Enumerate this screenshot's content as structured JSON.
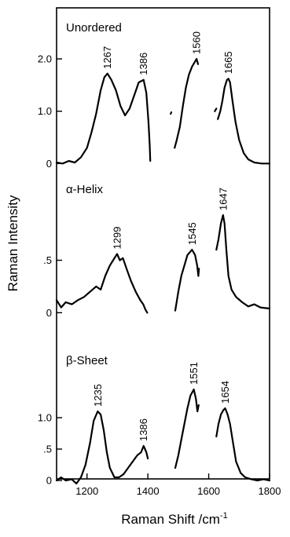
{
  "chart_data": {
    "type": "line",
    "xlabel": "Raman Shift /cm",
    "xlabel_sup": "-1",
    "ylabel": "Raman Intensity",
    "xlim": [
      1100,
      1800
    ],
    "xticks": [
      "1200",
      "1400",
      "1600",
      "1800"
    ],
    "xtick_values": [
      1200,
      1400,
      1600,
      1800
    ],
    "panels": [
      {
        "name": "Unordered",
        "ylim": [
          -0.1,
          2.3
        ],
        "yticks": [
          {
            "value": 0,
            "label": "0"
          },
          {
            "value": 1.0,
            "label": "1.0"
          },
          {
            "value": 2.0,
            "label": "2.0"
          }
        ],
        "segments": [
          [
            [
              1100,
              0.02
            ],
            [
              1120,
              0.0
            ],
            [
              1140,
              0.05
            ],
            [
              1160,
              0.02
            ],
            [
              1180,
              0.12
            ],
            [
              1200,
              0.3
            ],
            [
              1215,
              0.6
            ],
            [
              1230,
              0.95
            ],
            [
              1245,
              1.4
            ],
            [
              1257,
              1.65
            ],
            [
              1267,
              1.72
            ],
            [
              1280,
              1.6
            ],
            [
              1295,
              1.4
            ],
            [
              1310,
              1.1
            ],
            [
              1325,
              0.92
            ],
            [
              1340,
              1.05
            ],
            [
              1355,
              1.3
            ],
            [
              1370,
              1.55
            ],
            [
              1386,
              1.6
            ],
            [
              1395,
              1.35
            ],
            [
              1402,
              0.8
            ],
            [
              1406,
              0.35
            ],
            [
              1408,
              0.05
            ]
          ],
          [
            [
              1475,
              0.95
            ],
            [
              1477,
              0.98
            ]
          ],
          [
            [
              1488,
              0.3
            ],
            [
              1495,
              0.45
            ],
            [
              1505,
              0.7
            ],
            [
              1515,
              1.1
            ],
            [
              1525,
              1.45
            ],
            [
              1535,
              1.7
            ],
            [
              1545,
              1.85
            ],
            [
              1555,
              1.95
            ],
            [
              1560,
              2.0
            ],
            [
              1565,
              1.9
            ]
          ],
          [
            [
              1620,
              1.0
            ],
            [
              1625,
              1.05
            ]
          ],
          [
            [
              1630,
              0.85
            ],
            [
              1638,
              1.0
            ],
            [
              1645,
              1.2
            ],
            [
              1652,
              1.45
            ],
            [
              1660,
              1.6
            ],
            [
              1665,
              1.62
            ],
            [
              1670,
              1.55
            ],
            [
              1678,
              1.2
            ],
            [
              1688,
              0.8
            ],
            [
              1700,
              0.45
            ],
            [
              1715,
              0.2
            ],
            [
              1730,
              0.08
            ],
            [
              1750,
              0.02
            ],
            [
              1775,
              0.0
            ],
            [
              1800,
              0.0
            ]
          ]
        ],
        "peaks": [
          {
            "x": 1267,
            "label": "1267"
          },
          {
            "x": 1386,
            "label": "1386"
          },
          {
            "x": 1560,
            "label": "1560"
          },
          {
            "x": 1665,
            "label": "1665"
          }
        ]
      },
      {
        "name": "α-Helix",
        "ylim": [
          -0.05,
          1.05
        ],
        "yticks": [
          {
            "value": 0,
            "label": "0"
          },
          {
            "value": 0.5,
            "label": ".5"
          }
        ],
        "segments": [
          [
            [
              1100,
              0.12
            ],
            [
              1115,
              0.05
            ],
            [
              1130,
              0.1
            ],
            [
              1150,
              0.08
            ],
            [
              1170,
              0.12
            ],
            [
              1190,
              0.15
            ],
            [
              1210,
              0.2
            ],
            [
              1230,
              0.25
            ],
            [
              1245,
              0.22
            ],
            [
              1260,
              0.35
            ],
            [
              1275,
              0.45
            ],
            [
              1290,
              0.52
            ],
            [
              1299,
              0.56
            ],
            [
              1308,
              0.5
            ],
            [
              1318,
              0.52
            ],
            [
              1330,
              0.42
            ],
            [
              1345,
              0.3
            ],
            [
              1360,
              0.2
            ],
            [
              1375,
              0.12
            ],
            [
              1385,
              0.08
            ],
            [
              1392,
              0.03
            ],
            [
              1398,
              0.0
            ]
          ],
          [
            [
              1490,
              0.02
            ],
            [
              1500,
              0.2
            ],
            [
              1510,
              0.35
            ],
            [
              1520,
              0.45
            ],
            [
              1530,
              0.55
            ],
            [
              1545,
              0.6
            ],
            [
              1555,
              0.55
            ],
            [
              1562,
              0.45
            ],
            [
              1566,
              0.35
            ],
            [
              1568,
              0.42
            ]
          ],
          [
            [
              1625,
              0.6
            ],
            [
              1632,
              0.7
            ],
            [
              1640,
              0.85
            ],
            [
              1647,
              0.93
            ],
            [
              1652,
              0.85
            ],
            [
              1658,
              0.6
            ],
            [
              1665,
              0.35
            ],
            [
              1675,
              0.22
            ],
            [
              1690,
              0.15
            ],
            [
              1710,
              0.1
            ],
            [
              1730,
              0.06
            ],
            [
              1750,
              0.08
            ],
            [
              1770,
              0.05
            ],
            [
              1800,
              0.04
            ]
          ]
        ],
        "peaks": [
          {
            "x": 1299,
            "label": "1299"
          },
          {
            "x": 1545,
            "label": "1545"
          },
          {
            "x": 1647,
            "label": "1647"
          }
        ]
      },
      {
        "name": "β-Sheet",
        "ylim": [
          -0.1,
          1.7
        ],
        "yticks": [
          {
            "value": 0,
            "label": "0"
          },
          {
            "value": 0.5,
            "label": ".5"
          },
          {
            "value": 1.0,
            "label": "1.0"
          }
        ],
        "segments": [
          [
            [
              1100,
              0.0
            ],
            [
              1115,
              0.05
            ],
            [
              1130,
              0.0
            ],
            [
              1150,
              0.02
            ],
            [
              1165,
              -0.05
            ],
            [
              1180,
              0.05
            ],
            [
              1195,
              0.25
            ],
            [
              1210,
              0.6
            ],
            [
              1222,
              0.95
            ],
            [
              1235,
              1.1
            ],
            [
              1245,
              1.05
            ],
            [
              1255,
              0.8
            ],
            [
              1265,
              0.45
            ],
            [
              1275,
              0.2
            ],
            [
              1290,
              0.05
            ],
            [
              1305,
              0.05
            ],
            [
              1320,
              0.1
            ],
            [
              1335,
              0.2
            ],
            [
              1350,
              0.3
            ],
            [
              1365,
              0.4
            ],
            [
              1378,
              0.45
            ],
            [
              1386,
              0.55
            ],
            [
              1395,
              0.45
            ],
            [
              1400,
              0.35
            ]
          ],
          [
            [
              1490,
              0.2
            ],
            [
              1500,
              0.4
            ],
            [
              1510,
              0.65
            ],
            [
              1520,
              0.9
            ],
            [
              1530,
              1.15
            ],
            [
              1540,
              1.35
            ],
            [
              1551,
              1.45
            ],
            [
              1558,
              1.3
            ],
            [
              1563,
              1.1
            ],
            [
              1567,
              1.2
            ]
          ],
          [
            [
              1625,
              0.7
            ],
            [
              1632,
              0.9
            ],
            [
              1640,
              1.05
            ],
            [
              1648,
              1.12
            ],
            [
              1654,
              1.15
            ],
            [
              1662,
              1.05
            ],
            [
              1670,
              0.9
            ],
            [
              1680,
              0.6
            ],
            [
              1690,
              0.3
            ],
            [
              1705,
              0.12
            ],
            [
              1720,
              0.05
            ],
            [
              1740,
              0.02
            ],
            [
              1760,
              0.0
            ],
            [
              1780,
              0.02
            ],
            [
              1800,
              0.0
            ]
          ]
        ],
        "peaks": [
          {
            "x": 1235,
            "label": "1235"
          },
          {
            "x": 1386,
            "label": "1386"
          },
          {
            "x": 1551,
            "label": "1551"
          },
          {
            "x": 1654,
            "label": "1654"
          }
        ]
      }
    ]
  }
}
